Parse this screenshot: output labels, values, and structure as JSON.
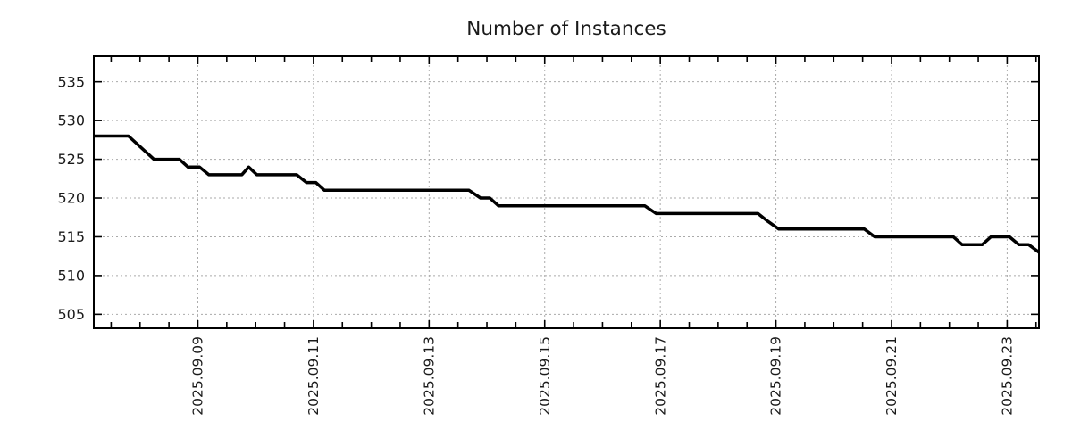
{
  "title": "Number of Instances",
  "colors": {
    "series_line": "#000000",
    "grid_line": "#aaaaaa",
    "axis_border": "#000000",
    "text": "#1a1a1a",
    "background": "#ffffff"
  },
  "chart_data": {
    "type": "line",
    "title": "Number of Instances",
    "xlabel": "",
    "ylabel": "",
    "legend": "none",
    "grid": "dashed",
    "x_unit": "day of September 2025 (fractional)",
    "xlim": [
      7.2,
      23.55
    ],
    "ylim": [
      503.2,
      538.3
    ],
    "y_ticks": [
      505,
      510,
      515,
      520,
      525,
      530,
      535
    ],
    "x_ticks": [
      {
        "day": 9,
        "label": "2025.09.09"
      },
      {
        "day": 11,
        "label": "2025.09.11"
      },
      {
        "day": 13,
        "label": "2025.09.13"
      },
      {
        "day": 15,
        "label": "2025.09.15"
      },
      {
        "day": 17,
        "label": "2025.09.17"
      },
      {
        "day": 19,
        "label": "2025.09.19"
      },
      {
        "day": 21,
        "label": "2025.09.21"
      },
      {
        "day": 23,
        "label": "2025.09.23"
      }
    ],
    "minor_tick_step_days": 0.5,
    "minor_tick_start": 7.5,
    "minor_tick_end": 23.5,
    "series": [
      {
        "name": "instances",
        "color": "#000000",
        "points": [
          [
            7.2,
            528
          ],
          [
            7.8,
            528
          ],
          [
            8.24,
            525
          ],
          [
            8.68,
            525
          ],
          [
            8.83,
            524
          ],
          [
            9.03,
            524
          ],
          [
            9.19,
            523
          ],
          [
            9.76,
            523
          ],
          [
            9.88,
            524
          ],
          [
            10.02,
            523
          ],
          [
            10.71,
            523
          ],
          [
            10.88,
            522
          ],
          [
            11.04,
            522
          ],
          [
            11.19,
            521
          ],
          [
            13.69,
            521
          ],
          [
            13.89,
            520
          ],
          [
            14.05,
            520
          ],
          [
            14.2,
            519
          ],
          [
            16.73,
            519
          ],
          [
            16.93,
            518
          ],
          [
            18.69,
            518
          ],
          [
            18.86,
            517
          ],
          [
            19.05,
            516
          ],
          [
            20.53,
            516
          ],
          [
            20.71,
            515
          ],
          [
            22.07,
            515
          ],
          [
            22.22,
            514
          ],
          [
            22.57,
            514
          ],
          [
            22.72,
            515
          ],
          [
            23.04,
            515
          ],
          [
            23.2,
            514
          ],
          [
            23.37,
            514
          ],
          [
            23.55,
            513
          ]
        ]
      }
    ]
  }
}
